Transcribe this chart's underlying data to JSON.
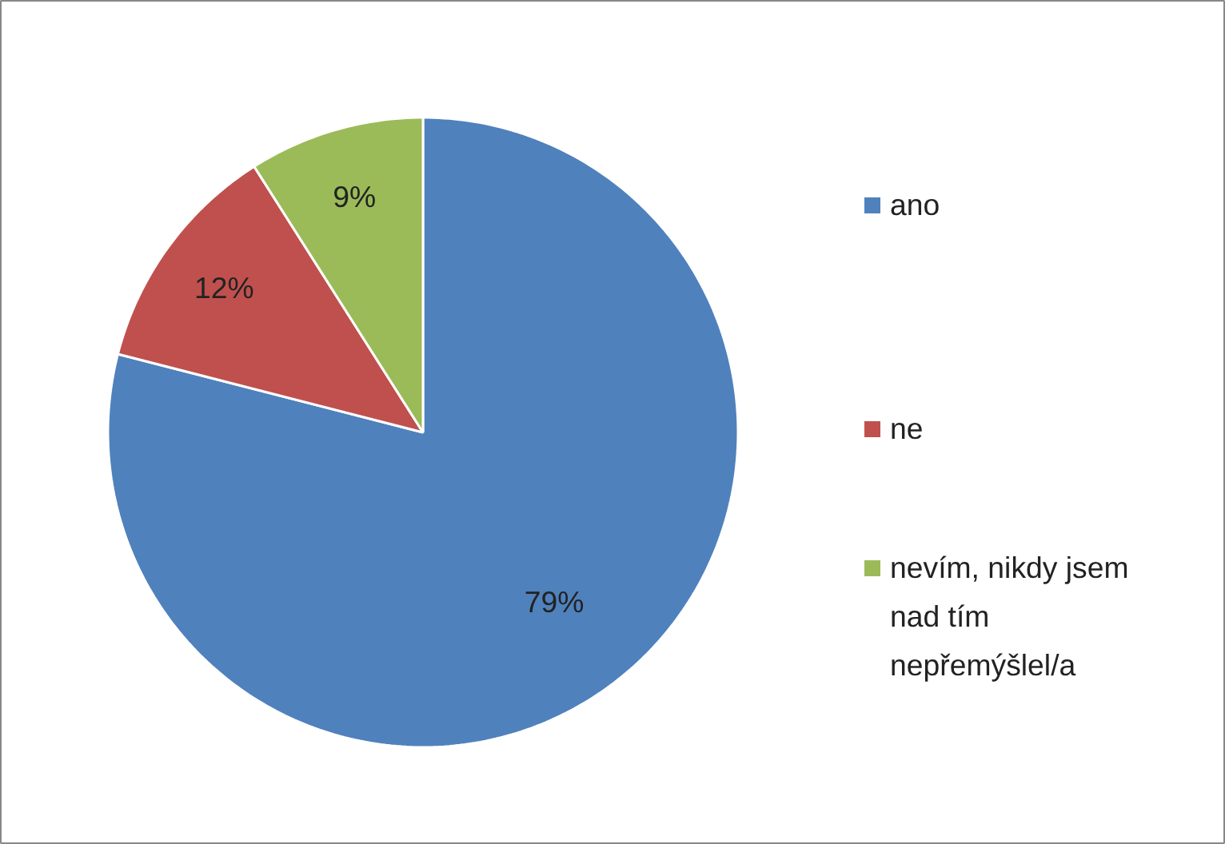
{
  "chart_data": {
    "type": "pie",
    "categories": [
      "ano",
      "ne",
      "nevím, nikdy jsem nad tím nepřemýšlel/a"
    ],
    "values": [
      79,
      12,
      9
    ],
    "colors": [
      "#4f81bd",
      "#c0504d",
      "#9bbb59"
    ],
    "value_labels": [
      "79%",
      "12%",
      "9%"
    ],
    "legend": "right"
  }
}
